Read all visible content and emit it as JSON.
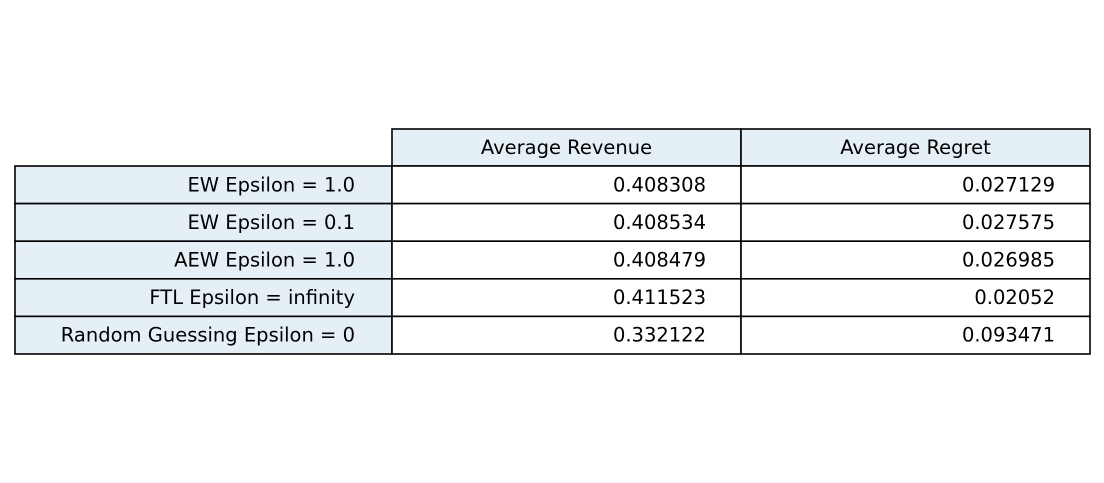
{
  "colors": {
    "header_fill": "#e4eff6",
    "cell_fill": "#ffffff",
    "border": "#000000"
  },
  "chart_data": {
    "type": "table",
    "columns": [
      "Average Revenue",
      "Average Regret"
    ],
    "rows": [
      {
        "label": "EW Epsilon = 1.0",
        "values": [
          "0.408308",
          "0.027129"
        ]
      },
      {
        "label": "EW Epsilon = 0.1",
        "values": [
          "0.408534",
          "0.027575"
        ]
      },
      {
        "label": "AEW Epsilon = 1.0",
        "values": [
          "0.408479",
          "0.026985"
        ]
      },
      {
        "label": "FTL Epsilon = infinity",
        "values": [
          "0.411523",
          "0.02052"
        ]
      },
      {
        "label": "Random Guessing Epsilon = 0",
        "values": [
          "0.332122",
          "0.093471"
        ]
      }
    ]
  }
}
